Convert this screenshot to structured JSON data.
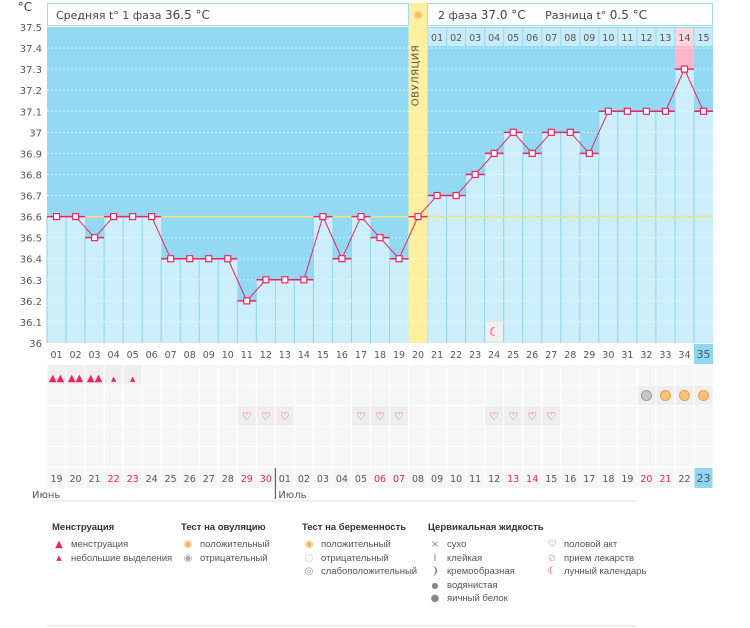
{
  "header": {
    "unit": "°C",
    "phase1_label": "Средняя t° 1 фаза",
    "phase1_value": "36.5 °C",
    "phase2_label": "2 фаза",
    "phase2_value": "37.0 °C",
    "diff_label": "Разница t°",
    "diff_value": "0.5 °C",
    "ovulation_label": "ОВУЛЯЦИЯ"
  },
  "chart_data": {
    "type": "line",
    "ylabel": "°C",
    "ylim": [
      36,
      37.5
    ],
    "yticks": [
      "36",
      "36.1",
      "36.2",
      "36.3",
      "36.4",
      "36.5",
      "36.6",
      "36.7",
      "36.8",
      "36.9",
      "37",
      "37.1",
      "37.2",
      "37.3",
      "37.4",
      "37.5"
    ],
    "coverline": 36.6,
    "ovulation_day": 20,
    "highlight_day": 34,
    "cycle_days": [
      "01",
      "02",
      "03",
      "04",
      "05",
      "06",
      "07",
      "08",
      "09",
      "10",
      "11",
      "12",
      "13",
      "14",
      "15",
      "16",
      "17",
      "18",
      "19",
      "20",
      "21",
      "22",
      "23",
      "24",
      "25",
      "26",
      "27",
      "28",
      "29",
      "30",
      "31",
      "32",
      "33",
      "34",
      "35"
    ],
    "phase2_days": [
      "01",
      "02",
      "03",
      "04",
      "05",
      "06",
      "07",
      "08",
      "09",
      "10",
      "11",
      "12",
      "13",
      "14",
      "15"
    ],
    "values": [
      36.6,
      36.6,
      36.5,
      36.6,
      36.6,
      36.6,
      36.4,
      36.4,
      36.4,
      36.4,
      36.2,
      36.3,
      36.3,
      36.3,
      36.6,
      36.4,
      36.6,
      36.5,
      36.4,
      36.6,
      36.7,
      36.7,
      36.8,
      36.9,
      37.0,
      36.9,
      37.0,
      37.0,
      36.9,
      37.1,
      37.1,
      37.1,
      37.1,
      37.3,
      37.1
    ],
    "dates": [
      "19",
      "20",
      "21",
      "22",
      "23",
      "24",
      "25",
      "26",
      "27",
      "28",
      "29",
      "30",
      "01",
      "02",
      "03",
      "04",
      "05",
      "06",
      "07",
      "08",
      "09",
      "10",
      "11",
      "12",
      "13",
      "14",
      "15",
      "16",
      "17",
      "18",
      "19",
      "20",
      "21",
      "22",
      "23"
    ],
    "weekend_dates_index": [
      3,
      4,
      10,
      11,
      17,
      18,
      24,
      25,
      31,
      32
    ],
    "months": [
      "Июнь",
      "Июль"
    ],
    "current_day": 35,
    "moon_day": 24,
    "menstruation": {
      "1": "heavy",
      "2": "heavy",
      "3": "heavy",
      "4": "light",
      "5": "light"
    },
    "tests": {
      "32": "weak",
      "33": "positive",
      "34": "positive",
      "35": "positive"
    },
    "intercourse_days": [
      11,
      12,
      13,
      17,
      18,
      19,
      24,
      25,
      26,
      27
    ]
  },
  "colors": {
    "bg_high": "#93d9f3",
    "bar": "#cdeefb",
    "line": "#f0245f",
    "coverline": "#f7e27a",
    "ovulation": "#fff0a0",
    "highlight": "#ffb6c8",
    "weekend": "#e8245a",
    "current": "#8fd6f0"
  },
  "legend": {
    "menstruation": {
      "title": "Менструация",
      "items": [
        "менструация",
        "небольшие выделения"
      ]
    },
    "ovulation_test": {
      "title": "Тест на овуляцию",
      "items": [
        "положительный",
        "отрицательный"
      ]
    },
    "pregnancy_test": {
      "title": "Тест на беременность",
      "items": [
        "положительный",
        "отрицательный",
        "слабоположительный"
      ]
    },
    "cervical": {
      "title": "Цервикальная жидкость",
      "items": [
        "сухо",
        "клейкая",
        "кремообразная",
        "водянистая",
        "яичный белок"
      ]
    },
    "other": {
      "items": [
        "половой акт",
        "прием лекарств",
        "лунный календарь"
      ]
    }
  }
}
